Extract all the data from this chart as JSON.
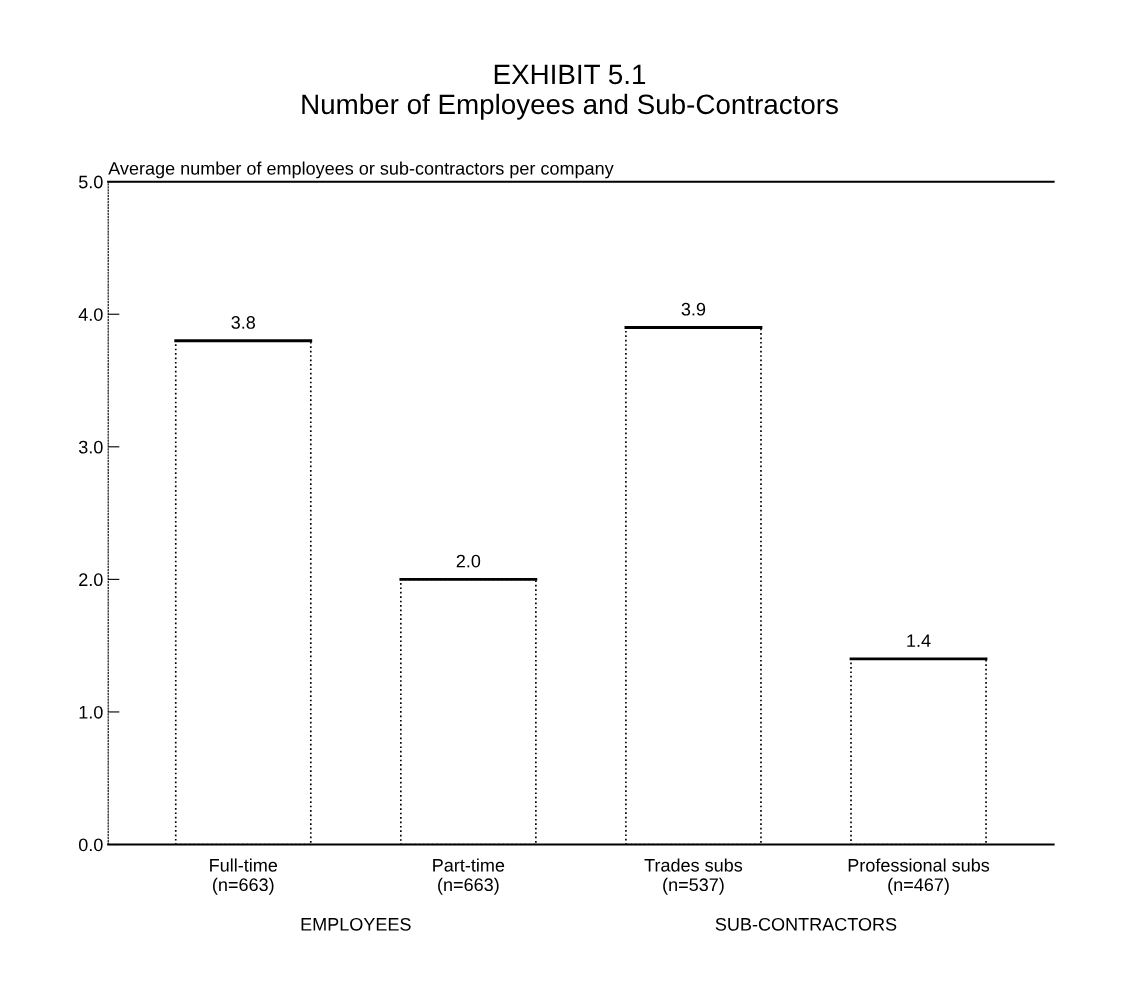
{
  "chart_data": {
    "type": "bar",
    "title": "EXHIBIT 5.1\nNumber of Employees and Sub-Contractors",
    "ylabel": "Average number of employees or sub-contractors per company",
    "categories": [
      "Full-time\n(n=663)",
      "Part-time\n(n=663)",
      "Trades subs\n(n=537)",
      "Professional subs\n(n=467)"
    ],
    "values": [
      3.8,
      2.0,
      3.9,
      1.4
    ],
    "color": "#ffffff",
    "value_labels": [
      "3.8",
      "2.0",
      "3.9",
      "1.4"
    ],
    "ylim": [
      0,
      5
    ],
    "yticks": [
      {
        "value": 0,
        "label": "0.0"
      },
      {
        "value": 1,
        "label": "1.0"
      },
      {
        "value": 2,
        "label": "2.0"
      },
      {
        "value": 3,
        "label": "3.0"
      },
      {
        "value": 4,
        "label": "4.0"
      },
      {
        "value": 5,
        "label": "5.0"
      }
    ],
    "annotations": [
      "EMPLOYEES",
      "SUB-CONTRACTORS"
    ],
    "grid": false,
    "legend": false
  }
}
